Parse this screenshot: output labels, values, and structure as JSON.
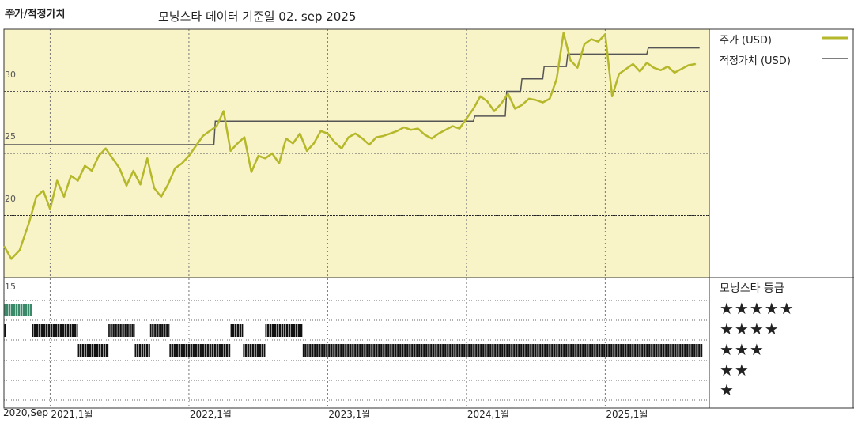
{
  "header": {
    "title": "주가/적정가치",
    "subtitle": "모닝스타 데이터 기준일 02. sep 2025"
  },
  "legend": {
    "price_label": "주가 (USD)",
    "fair_label": "적정가치 (USD)",
    "price_color": "#b5b82a",
    "fair_color": "#555555"
  },
  "rating_panel": {
    "title": "모닝스타 등급",
    "rows": [
      "★★★★★",
      "★★★★",
      "★★★",
      "★★",
      "★"
    ]
  },
  "colors": {
    "plot_bg": "#f8f4c8",
    "five_star_color": "#3a8a6a",
    "rating_bar_color": "#111111"
  },
  "chart_data": {
    "type": "line",
    "title": "주가/적정가치",
    "subtitle": "모닝스타 데이터 기준일 02. sep 2025",
    "x_ticks": [
      "2020,Sep",
      "2021,1월",
      "2022,1월",
      "2023,1월",
      "2024,1월",
      "2025,1월"
    ],
    "x_tick_values": [
      2020.667,
      2021.0,
      2022.0,
      2023.0,
      2024.0,
      2025.0
    ],
    "xlim": [
      2020.667,
      2025.75
    ],
    "ylim": [
      15,
      35
    ],
    "y_ticks": [
      15,
      20,
      25,
      30,
      35
    ],
    "grid": true,
    "legend_position": "right",
    "series": [
      {
        "name": "주가 (USD)",
        "x": [
          2020.67,
          2020.72,
          2020.78,
          2020.85,
          2020.9,
          2020.95,
          2021.0,
          2021.05,
          2021.1,
          2021.15,
          2021.2,
          2021.25,
          2021.3,
          2021.35,
          2021.4,
          2021.45,
          2021.5,
          2021.55,
          2021.6,
          2021.65,
          2021.7,
          2021.75,
          2021.8,
          2021.85,
          2021.9,
          2021.95,
          2022.0,
          2022.05,
          2022.1,
          2022.15,
          2022.2,
          2022.25,
          2022.3,
          2022.35,
          2022.4,
          2022.45,
          2022.5,
          2022.55,
          2022.6,
          2022.65,
          2022.7,
          2022.75,
          2022.8,
          2022.85,
          2022.9,
          2022.95,
          2023.0,
          2023.05,
          2023.1,
          2023.15,
          2023.2,
          2023.25,
          2023.3,
          2023.35,
          2023.4,
          2023.45,
          2023.5,
          2023.55,
          2023.6,
          2023.65,
          2023.7,
          2023.75,
          2023.8,
          2023.85,
          2023.9,
          2023.95,
          2024.0,
          2024.05,
          2024.1,
          2024.15,
          2024.2,
          2024.25,
          2024.3,
          2024.35,
          2024.4,
          2024.45,
          2024.5,
          2024.55,
          2024.6,
          2024.65,
          2024.7,
          2024.75,
          2024.8,
          2024.85,
          2024.9,
          2024.95,
          2025.0,
          2025.05,
          2025.1,
          2025.15,
          2025.2,
          2025.25,
          2025.3,
          2025.35,
          2025.4,
          2025.45,
          2025.5,
          2025.55,
          2025.6,
          2025.65
        ],
        "values": [
          17.5,
          16.5,
          17.2,
          19.5,
          21.5,
          22.0,
          20.5,
          22.8,
          21.5,
          23.2,
          22.8,
          24.0,
          23.6,
          24.8,
          25.4,
          24.6,
          23.8,
          22.4,
          23.6,
          22.5,
          24.6,
          22.2,
          21.5,
          22.5,
          23.8,
          24.2,
          24.8,
          25.6,
          26.4,
          26.8,
          27.2,
          28.4,
          25.2,
          25.8,
          26.3,
          23.5,
          24.8,
          24.6,
          25.0,
          24.2,
          26.2,
          25.8,
          26.6,
          25.2,
          25.8,
          26.8,
          26.6,
          25.9,
          25.4,
          26.3,
          26.6,
          26.2,
          25.7,
          26.3,
          26.4,
          26.6,
          26.8,
          27.1,
          26.9,
          27.0,
          26.5,
          26.2,
          26.6,
          26.9,
          27.2,
          27.0,
          27.8,
          28.6,
          29.6,
          29.2,
          28.4,
          29.0,
          29.8,
          28.6,
          28.9,
          29.4,
          29.3,
          29.1,
          29.4,
          31.0,
          34.7,
          32.5,
          31.9,
          33.8,
          34.2,
          34.0,
          34.6,
          29.6,
          31.4,
          31.8,
          32.2,
          31.6,
          32.3,
          31.9,
          31.7,
          32.0,
          31.5,
          31.8,
          32.1,
          32.2
        ]
      },
      {
        "name": "적정가치 (USD)",
        "x": [
          2020.67,
          2022.18,
          2022.19,
          2024.05,
          2024.06,
          2024.28,
          2024.29,
          2024.39,
          2024.4,
          2024.55,
          2024.56,
          2024.72,
          2024.73,
          2025.3,
          2025.31,
          2025.68
        ],
        "values": [
          25.7,
          25.7,
          27.6,
          27.6,
          28.0,
          28.0,
          30.0,
          30.0,
          31.0,
          31.0,
          32.0,
          32.0,
          33.0,
          33.0,
          33.5,
          33.5
        ]
      }
    ],
    "rating_history": [
      {
        "stars": 5,
        "start": 2020.67,
        "end": 2020.87
      },
      {
        "stars": 4,
        "start": 2020.67,
        "end": 2020.68
      },
      {
        "stars": 4,
        "start": 2020.87,
        "end": 2021.2
      },
      {
        "stars": 3,
        "start": 2021.2,
        "end": 2021.42
      },
      {
        "stars": 4,
        "start": 2021.42,
        "end": 2021.61
      },
      {
        "stars": 3,
        "start": 2021.61,
        "end": 2021.72
      },
      {
        "stars": 4,
        "start": 2021.72,
        "end": 2021.86
      },
      {
        "stars": 3,
        "start": 2021.86,
        "end": 2022.3
      },
      {
        "stars": 4,
        "start": 2022.3,
        "end": 2022.39
      },
      {
        "stars": 3,
        "start": 2022.39,
        "end": 2022.55
      },
      {
        "stars": 4,
        "start": 2022.55,
        "end": 2022.82
      },
      {
        "stars": 3,
        "start": 2022.82,
        "end": 2025.7
      }
    ]
  }
}
